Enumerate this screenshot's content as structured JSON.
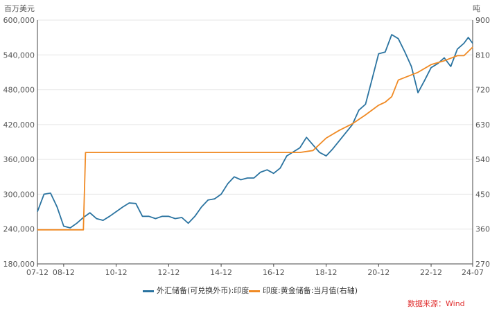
{
  "chart_data": {
    "type": "line",
    "y_left_unit": "百万美元",
    "y_right_unit": "吨",
    "x_ticks": [
      "07-12",
      "08-12",
      "10-12",
      "12-12",
      "14-12",
      "16-12",
      "18-12",
      "20-12",
      "22-12",
      "24-07"
    ],
    "y_left_ticks": [
      "180,000",
      "240,000",
      "300,000",
      "360,000",
      "420,000",
      "480,000",
      "540,000",
      "600,000"
    ],
    "y_right_ticks": [
      "270",
      "360",
      "450",
      "540",
      "630",
      "720",
      "810",
      "900"
    ],
    "ylim_left": [
      180000,
      600000
    ],
    "ylim_right": [
      270,
      900
    ],
    "x_range": [
      "2007-12",
      "2024-07"
    ],
    "series": [
      {
        "name": "外汇储备(可兑换外币):印度",
        "axis": "left",
        "color": "#2a73a0",
        "x": [
          "2007-12",
          "2008-03",
          "2008-06",
          "2008-09",
          "2008-12",
          "2009-03",
          "2009-06",
          "2009-09",
          "2009-12",
          "2010-03",
          "2010-06",
          "2010-09",
          "2010-12",
          "2011-03",
          "2011-06",
          "2011-09",
          "2011-12",
          "2012-03",
          "2012-06",
          "2012-09",
          "2012-12",
          "2013-03",
          "2013-06",
          "2013-09",
          "2013-12",
          "2014-03",
          "2014-06",
          "2014-09",
          "2014-12",
          "2015-03",
          "2015-06",
          "2015-09",
          "2015-12",
          "2016-03",
          "2016-06",
          "2016-09",
          "2016-12",
          "2017-03",
          "2017-06",
          "2017-09",
          "2017-12",
          "2018-03",
          "2018-06",
          "2018-09",
          "2018-12",
          "2019-03",
          "2019-06",
          "2019-09",
          "2019-12",
          "2020-03",
          "2020-06",
          "2020-09",
          "2020-12",
          "2021-03",
          "2021-06",
          "2021-09",
          "2021-12",
          "2022-03",
          "2022-06",
          "2022-09",
          "2022-12",
          "2023-03",
          "2023-06",
          "2023-09",
          "2023-12",
          "2024-03",
          "2024-05",
          "2024-07"
        ],
        "values": [
          270000,
          300000,
          302000,
          278000,
          245000,
          242000,
          250000,
          260000,
          268000,
          258000,
          255000,
          262000,
          270000,
          278000,
          285000,
          284000,
          262000,
          262000,
          258000,
          262000,
          262000,
          258000,
          260000,
          250000,
          262000,
          278000,
          290000,
          292000,
          300000,
          318000,
          330000,
          325000,
          328000,
          328000,
          338000,
          342000,
          336000,
          345000,
          366000,
          373000,
          380000,
          398000,
          385000,
          372000,
          366000,
          378000,
          392000,
          406000,
          420000,
          445000,
          455000,
          498000,
          542000,
          545000,
          575000,
          568000,
          545000,
          520000,
          475000,
          496000,
          518000,
          525000,
          535000,
          520000,
          550000,
          560000,
          570000,
          560000
        ]
      },
      {
        "name": "印度:黄金储备:当月值(右轴)",
        "axis": "right",
        "color": "#f08a24",
        "x": [
          "2007-12",
          "2009-09",
          "2009-10",
          "2017-12",
          "2018-06",
          "2018-12",
          "2019-06",
          "2019-12",
          "2020-06",
          "2020-12",
          "2021-03",
          "2021-06",
          "2021-09",
          "2022-06",
          "2022-12",
          "2023-06",
          "2023-12",
          "2024-03",
          "2024-07"
        ],
        "values": [
          358,
          358,
          558,
          558,
          563,
          595,
          615,
          632,
          655,
          680,
          688,
          702,
          745,
          765,
          785,
          795,
          808,
          808,
          830
        ]
      }
    ]
  },
  "source": "数据来源：Wind"
}
